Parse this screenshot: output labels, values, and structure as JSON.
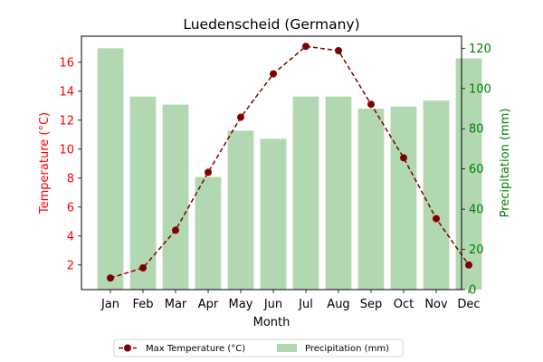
{
  "chart_data": {
    "type": "bar+line",
    "title": "Luedenscheid (Germany)",
    "xlabel": "Month",
    "categories": [
      "Jan",
      "Feb",
      "Mar",
      "Apr",
      "May",
      "Jun",
      "Jul",
      "Aug",
      "Sep",
      "Oct",
      "Nov",
      "Dec"
    ],
    "left_axis": {
      "label": "Temperature (°C)",
      "color": "#ff0000",
      "ylim": [
        0.3,
        17.8
      ],
      "ticks": [
        2,
        4,
        6,
        8,
        10,
        12,
        14,
        16
      ]
    },
    "right_axis": {
      "label": "Precipitation (mm)",
      "color": "#008000",
      "ylim": [
        0,
        126
      ],
      "ticks": [
        0,
        20,
        40,
        60,
        80,
        100,
        120
      ]
    },
    "series": [
      {
        "name": "Max Temperature (°C)",
        "kind": "line",
        "axis": "left",
        "color": "#800000",
        "line_style": "dashed",
        "marker": "circle",
        "values": [
          1.1,
          1.8,
          4.4,
          8.4,
          12.2,
          15.2,
          17.1,
          16.8,
          13.1,
          9.4,
          5.2,
          2.0
        ]
      },
      {
        "name": "Precipitation (mm)",
        "kind": "bar",
        "axis": "right",
        "color": "#b2d8b2",
        "values": [
          120,
          96,
          92,
          56,
          79,
          75,
          96,
          96,
          90,
          91,
          94,
          115
        ]
      }
    ],
    "legend_position": "bottom-center"
  }
}
